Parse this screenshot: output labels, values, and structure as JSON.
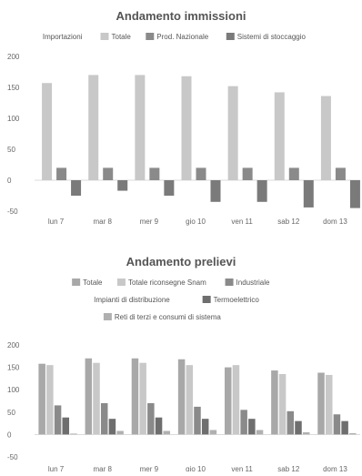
{
  "colors": {
    "s1": "#a8a8a8",
    "s2": "#c8c8c8",
    "s3": "#8a8a8a",
    "s4": "#7a7a7a",
    "s5": "#6e6e6e",
    "s6": "#b0b0b0",
    "grid": "#e2e2e2",
    "zero": "#cfcfcf"
  },
  "chart_data": [
    {
      "type": "bar",
      "title": "Andamento immissioni",
      "xlabel": "",
      "ylabel": "",
      "ylim": [
        -50,
        200
      ],
      "yticks": [
        200,
        150,
        100,
        50,
        0,
        -50
      ],
      "grid": false,
      "legend_position": "top",
      "categories": [
        "lun 7",
        "mar 8",
        "mer 9",
        "gio 10",
        "ven 11",
        "sab 12",
        "dom 13"
      ],
      "series": [
        {
          "name": "Importazioni",
          "values": [
            0,
            0,
            0,
            0,
            0,
            0,
            0
          ]
        },
        {
          "name": "Totale",
          "values": [
            157,
            170,
            170,
            168,
            152,
            142,
            136
          ]
        },
        {
          "name": "Prod. Nazionale",
          "values": [
            20,
            20,
            20,
            20,
            20,
            20,
            20
          ]
        },
        {
          "name": "Sistemi di stoccaggio",
          "values": [
            -25,
            -17,
            -25,
            -35,
            -35,
            -44,
            -45
          ]
        }
      ]
    },
    {
      "type": "bar",
      "title": "Andamento prelievi",
      "xlabel": "",
      "ylabel": "",
      "ylim": [
        -50,
        200
      ],
      "yticks": [
        200,
        150,
        100,
        50,
        0,
        -50
      ],
      "grid": false,
      "legend_position": "top",
      "categories": [
        "lun 7",
        "mar 8",
        "mer 9",
        "gio 10",
        "ven 11",
        "sab 12",
        "dom 13"
      ],
      "series": [
        {
          "name": "Totale",
          "values": [
            158,
            170,
            170,
            168,
            150,
            143,
            138
          ]
        },
        {
          "name": "Totale riconsegne Snam",
          "values": [
            155,
            160,
            160,
            155,
            155,
            135,
            133
          ]
        },
        {
          "name": "Industriale",
          "values": [
            65,
            70,
            70,
            62,
            55,
            52,
            45
          ]
        },
        {
          "name": "Impianti di distribuzione",
          "values": [
            0,
            0,
            0,
            0,
            0,
            0,
            0
          ]
        },
        {
          "name": "Termoelettrico",
          "values": [
            38,
            35,
            38,
            35,
            35,
            30,
            30
          ]
        },
        {
          "name": "Reti di terzi e consumi di sistema",
          "values": [
            2,
            8,
            8,
            10,
            10,
            5,
            3
          ]
        }
      ]
    }
  ]
}
